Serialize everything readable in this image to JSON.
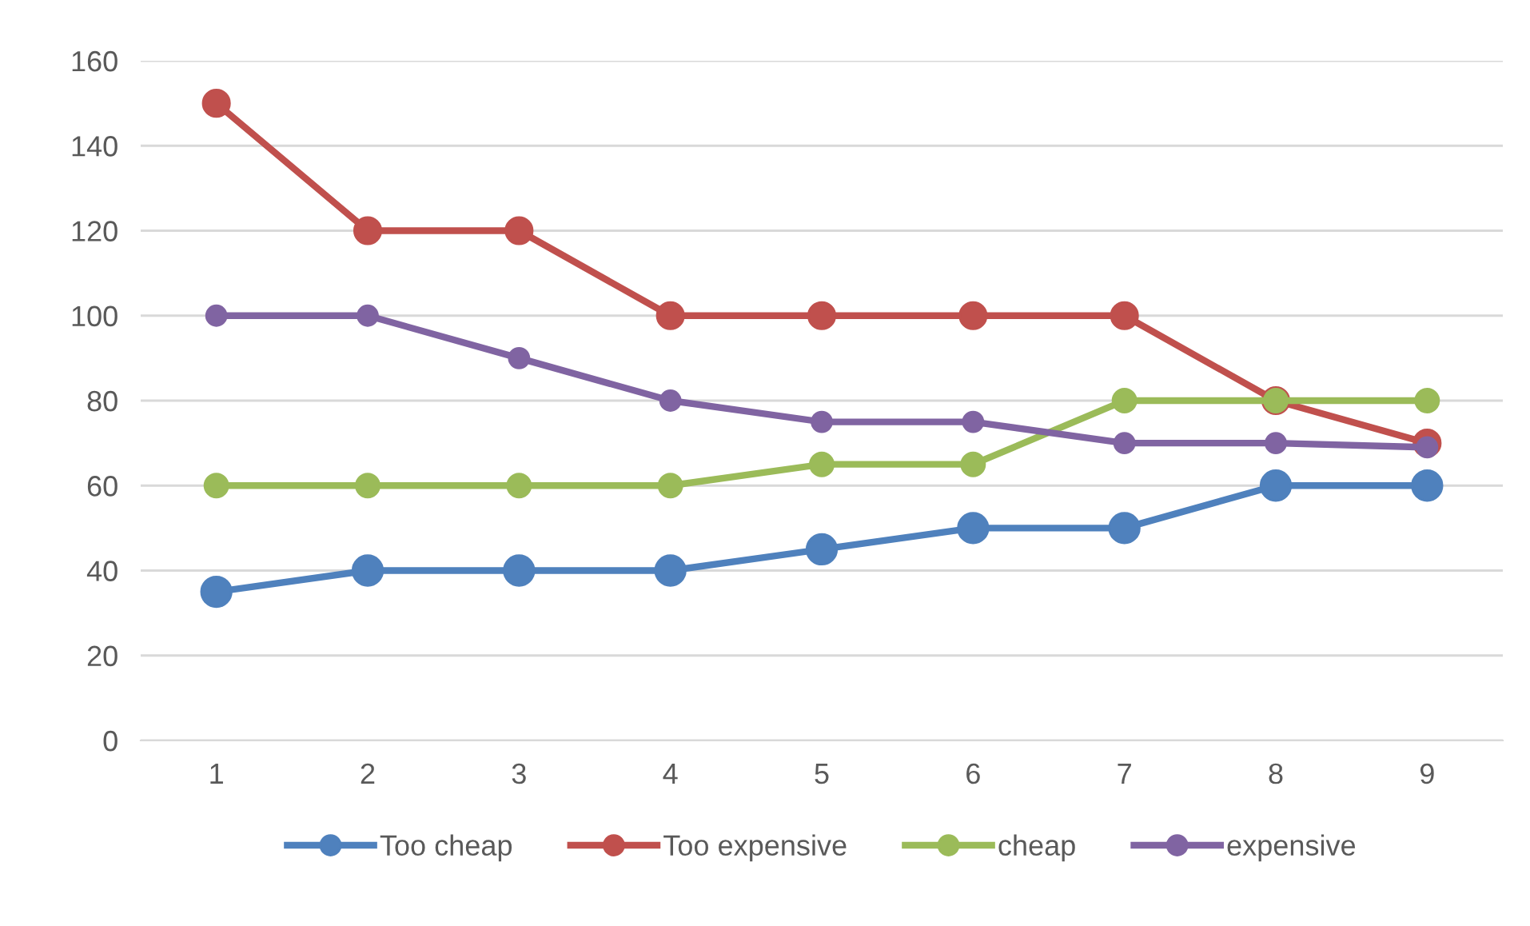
{
  "chart_data": {
    "type": "line",
    "categories": [
      "1",
      "2",
      "3",
      "4",
      "5",
      "6",
      "7",
      "8",
      "9"
    ],
    "series": [
      {
        "name": "Too cheap",
        "color": "#4f81bd",
        "values": [
          35,
          40,
          40,
          40,
          45,
          50,
          50,
          60,
          60
        ]
      },
      {
        "name": "Too expensive",
        "color": "#c0504d",
        "values": [
          150,
          120,
          120,
          100,
          100,
          100,
          100,
          80,
          70
        ]
      },
      {
        "name": "cheap",
        "color": "#9bbb59",
        "values": [
          60,
          60,
          60,
          60,
          65,
          65,
          80,
          80,
          80
        ]
      },
      {
        "name": "expensive",
        "color": "#8064a2",
        "values": [
          100,
          100,
          90,
          80,
          75,
          75,
          70,
          70,
          69
        ]
      }
    ],
    "ylim": [
      0,
      160
    ],
    "yticks": [
      0,
      20,
      40,
      60,
      80,
      100,
      120,
      140,
      160
    ],
    "grid": "y",
    "legend": "bottom",
    "marker": "circle",
    "line_style": "solid"
  }
}
